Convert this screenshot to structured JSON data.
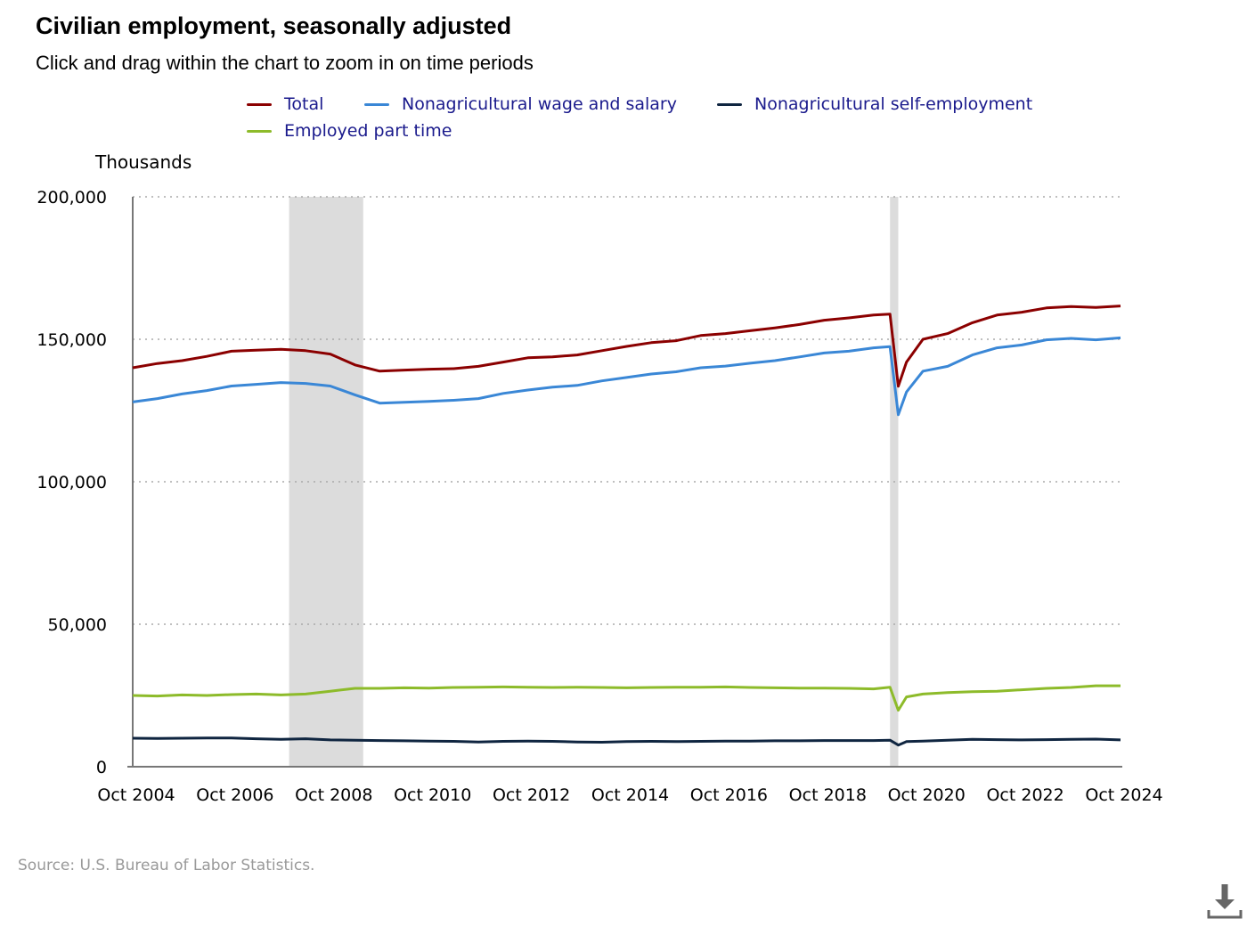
{
  "header": {
    "title": "Civilian employment, seasonally adjusted",
    "subtitle": "Click and drag within the chart to zoom in on time periods"
  },
  "footer": {
    "source": "Source: U.S. Bureau of Labor Statistics."
  },
  "icons": {
    "download": "download-icon"
  },
  "colors": {
    "total": "#8b0000",
    "wage_salary": "#3a87d6",
    "self_employment": "#0f2540",
    "part_time": "#8dbb2a",
    "recession": "#dcdcdc",
    "legend_text": "#1a1a8c"
  },
  "chart_data": {
    "type": "line",
    "title": "Civilian employment, seasonally adjusted",
    "ylabel": "Thousands",
    "xlabel": "",
    "ylim": [
      0,
      200000
    ],
    "y_ticks": [
      "0",
      "50,000",
      "100,000",
      "150,000",
      "200,000"
    ],
    "x_ticks": [
      "Oct 2004",
      "Oct 2006",
      "Oct 2008",
      "Oct 2010",
      "Oct 2012",
      "Oct 2014",
      "Oct 2016",
      "Oct 2018",
      "Oct 2020",
      "Oct 2022",
      "Oct 2024"
    ],
    "xlim": [
      "2004-10",
      "2024-10"
    ],
    "grid": true,
    "legend_position": "top",
    "recessions": [
      {
        "start": "2007-12",
        "end": "2009-06"
      },
      {
        "start": "2020-02",
        "end": "2020-04"
      }
    ],
    "x": [
      "2004-10",
      "2005-04",
      "2005-10",
      "2006-04",
      "2006-10",
      "2007-04",
      "2007-10",
      "2008-04",
      "2008-10",
      "2009-04",
      "2009-10",
      "2010-04",
      "2010-10",
      "2011-04",
      "2011-10",
      "2012-04",
      "2012-10",
      "2013-04",
      "2013-10",
      "2014-04",
      "2014-10",
      "2015-04",
      "2015-10",
      "2016-04",
      "2016-10",
      "2017-04",
      "2017-10",
      "2018-04",
      "2018-10",
      "2019-04",
      "2019-10",
      "2020-02",
      "2020-04",
      "2020-06",
      "2020-10",
      "2021-04",
      "2021-10",
      "2022-04",
      "2022-10",
      "2023-04",
      "2023-10",
      "2024-04",
      "2024-10"
    ],
    "series": [
      {
        "name": "Total",
        "values": [
          140000,
          141500,
          142500,
          144000,
          145800,
          146200,
          146500,
          146000,
          144800,
          141000,
          138800,
          139200,
          139500,
          139700,
          140500,
          142000,
          143500,
          143800,
          144500,
          146000,
          147500,
          148800,
          149500,
          151300,
          152000,
          153000,
          154000,
          155200,
          156700,
          157500,
          158500,
          158800,
          133500,
          142000,
          150000,
          152000,
          155800,
          158500,
          159500,
          161000,
          161500,
          161200,
          161700
        ]
      },
      {
        "name": "Nonagricultural wage and salary",
        "values": [
          128000,
          129200,
          130800,
          132000,
          133600,
          134200,
          134800,
          134500,
          133600,
          130500,
          127600,
          127900,
          128200,
          128600,
          129200,
          131000,
          132200,
          133200,
          133800,
          135400,
          136600,
          137800,
          138600,
          140000,
          140600,
          141600,
          142500,
          143800,
          145200,
          145800,
          147000,
          147400,
          123500,
          131500,
          138800,
          140500,
          144500,
          147000,
          148000,
          149800,
          150300,
          149800,
          150500
        ]
      },
      {
        "name": "Nonagricultural self-employment",
        "values": [
          10000,
          9900,
          10000,
          10100,
          10100,
          9800,
          9600,
          9800,
          9400,
          9300,
          9200,
          9100,
          9000,
          8900,
          8700,
          8900,
          9000,
          8900,
          8700,
          8600,
          8800,
          8900,
          8800,
          8900,
          9000,
          9000,
          9100,
          9100,
          9200,
          9200,
          9200,
          9300,
          7600,
          8800,
          9000,
          9300,
          9600,
          9500,
          9400,
          9500,
          9600,
          9700,
          9400
        ]
      },
      {
        "name": "Employed part time",
        "values": [
          25000,
          24800,
          25200,
          25000,
          25300,
          25500,
          25200,
          25500,
          26500,
          27500,
          27500,
          27700,
          27600,
          27800,
          27900,
          28000,
          27900,
          27800,
          27900,
          27800,
          27700,
          27800,
          27900,
          27900,
          28000,
          27800,
          27700,
          27600,
          27600,
          27500,
          27300,
          27900,
          19800,
          24500,
          25500,
          26000,
          26300,
          26500,
          27000,
          27500,
          27800,
          28400,
          28400
        ]
      }
    ]
  }
}
